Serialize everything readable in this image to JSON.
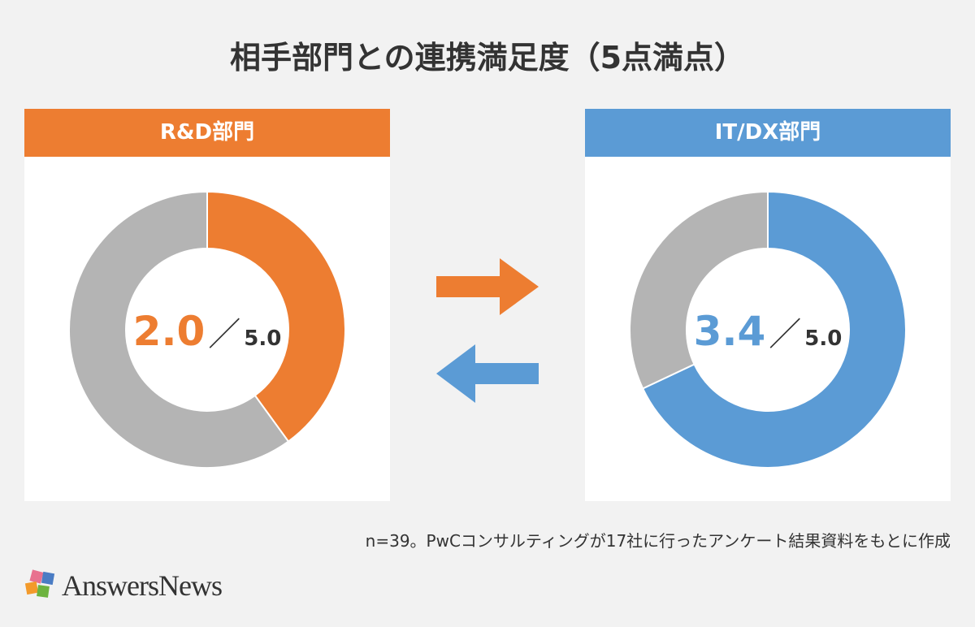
{
  "title": "相手部門との連携満足度（5点満点）",
  "chart_data": [
    {
      "type": "pie",
      "donut": true,
      "title": "R&D部門",
      "value": 2.0,
      "max": 5.0,
      "value_label": "2.0",
      "max_label": "5.0",
      "colors": {
        "value": "#ED7D31",
        "remainder": "#B4B4B4",
        "header": "#ED7D31"
      }
    },
    {
      "type": "pie",
      "donut": true,
      "title": "IT/DX部門",
      "value": 3.4,
      "max": 5.0,
      "value_label": "3.4",
      "max_label": "5.0",
      "colors": {
        "value": "#5B9BD5",
        "remainder": "#B4B4B4",
        "header": "#5B9BD5"
      }
    }
  ],
  "arrows": [
    {
      "direction": "right",
      "color": "#ED7D31"
    },
    {
      "direction": "left",
      "color": "#5B9BD5"
    }
  ],
  "slash": "／",
  "note": "n=39。PwCコンサルティングが17社に行ったアンケート結果資料をもとに作成",
  "logo": {
    "text": "AnswersNews"
  }
}
